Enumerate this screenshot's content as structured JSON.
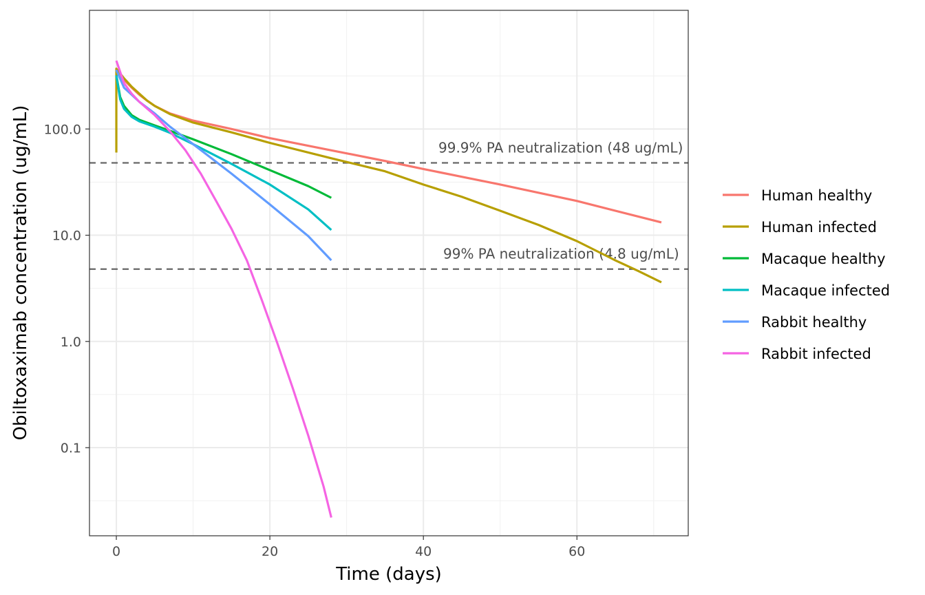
{
  "chart_data": {
    "type": "line",
    "xlabel": "Time (days)",
    "ylabel": "Obiltoxaximab concentration (ug/mL)",
    "x_scale": "linear",
    "y_scale": "log10",
    "xlim": [
      -3.5,
      74.5
    ],
    "ylim": [
      0.0148,
      1310
    ],
    "x_ticks": [
      0,
      20,
      40,
      60
    ],
    "x_tick_labels": [
      "0",
      "20",
      "40",
      "60"
    ],
    "y_ticks": [
      0.1,
      1,
      10,
      100
    ],
    "y_tick_labels": [
      "0.1",
      "1.0",
      "10.0",
      "100.0"
    ],
    "grid": true,
    "legend_position": "right",
    "reference_lines": [
      {
        "y": 48,
        "style": "dashed",
        "label": "99.9% PA neutralization (48 ug/mL)"
      },
      {
        "y": 4.8,
        "style": "dashed",
        "label": "99% PA neutralization (4.8 ug/mL)"
      }
    ],
    "series": [
      {
        "name": "Human healthy",
        "color": "#F8766D",
        "points": [
          [
            0,
            340
          ],
          [
            1,
            290
          ],
          [
            2,
            245
          ],
          [
            3,
            210
          ],
          [
            4,
            185
          ],
          [
            5,
            165
          ],
          [
            7,
            140
          ],
          [
            10,
            120
          ],
          [
            15,
            100
          ],
          [
            20,
            82
          ],
          [
            28,
            63
          ],
          [
            35,
            50
          ],
          [
            40,
            42
          ],
          [
            50,
            30
          ],
          [
            60,
            21
          ],
          [
            71,
            13.2
          ]
        ]
      },
      {
        "name": "Human infected",
        "color": "#B79F00",
        "points": [
          [
            0,
            60
          ],
          [
            0,
            370
          ],
          [
            1,
            300
          ],
          [
            2,
            250
          ],
          [
            3,
            215
          ],
          [
            4,
            185
          ],
          [
            5,
            165
          ],
          [
            7,
            138
          ],
          [
            10,
            115
          ],
          [
            15,
            93
          ],
          [
            20,
            74
          ],
          [
            28,
            53
          ],
          [
            35,
            40
          ],
          [
            40,
            30
          ],
          [
            45,
            23
          ],
          [
            50,
            17
          ],
          [
            55,
            12.5
          ],
          [
            60,
            8.8
          ],
          [
            65,
            5.8
          ],
          [
            68,
            4.6
          ],
          [
            71,
            3.6
          ]
        ]
      },
      {
        "name": "Macaque healthy",
        "color": "#00BA38",
        "points": [
          [
            0,
            320
          ],
          [
            0.5,
            200
          ],
          [
            1,
            165
          ],
          [
            2,
            135
          ],
          [
            3,
            122
          ],
          [
            5,
            108
          ],
          [
            7,
            96
          ],
          [
            10,
            80
          ],
          [
            15,
            58
          ],
          [
            20,
            41
          ],
          [
            25,
            29
          ],
          [
            28,
            22.5
          ]
        ]
      },
      {
        "name": "Macaque infected",
        "color": "#00BFC4",
        "points": [
          [
            0,
            320
          ],
          [
            0.5,
            190
          ],
          [
            1,
            155
          ],
          [
            2,
            130
          ],
          [
            3,
            118
          ],
          [
            5,
            105
          ],
          [
            7,
            92
          ],
          [
            10,
            72
          ],
          [
            15,
            47
          ],
          [
            20,
            30
          ],
          [
            25,
            17.5
          ],
          [
            28,
            11.2
          ]
        ]
      },
      {
        "name": "Rabbit healthy",
        "color": "#619CFF",
        "points": [
          [
            0,
            360
          ],
          [
            1,
            245
          ],
          [
            2,
            210
          ],
          [
            3,
            180
          ],
          [
            5,
            140
          ],
          [
            7,
            105
          ],
          [
            10,
            72
          ],
          [
            15,
            38
          ],
          [
            20,
            19.5
          ],
          [
            25,
            9.8
          ],
          [
            28,
            5.8
          ]
        ]
      },
      {
        "name": "Rabbit infected",
        "color": "#F564E3",
        "points": [
          [
            0,
            440
          ],
          [
            1,
            270
          ],
          [
            2,
            215
          ],
          [
            3,
            180
          ],
          [
            5,
            135
          ],
          [
            7,
            95
          ],
          [
            9,
            63
          ],
          [
            11,
            38
          ],
          [
            13,
            21
          ],
          [
            15,
            11.5
          ],
          [
            17,
            5.8
          ],
          [
            19,
            2.4
          ],
          [
            21,
            0.95
          ],
          [
            23,
            0.36
          ],
          [
            25,
            0.13
          ],
          [
            27,
            0.043
          ],
          [
            28,
            0.022
          ]
        ]
      }
    ]
  }
}
